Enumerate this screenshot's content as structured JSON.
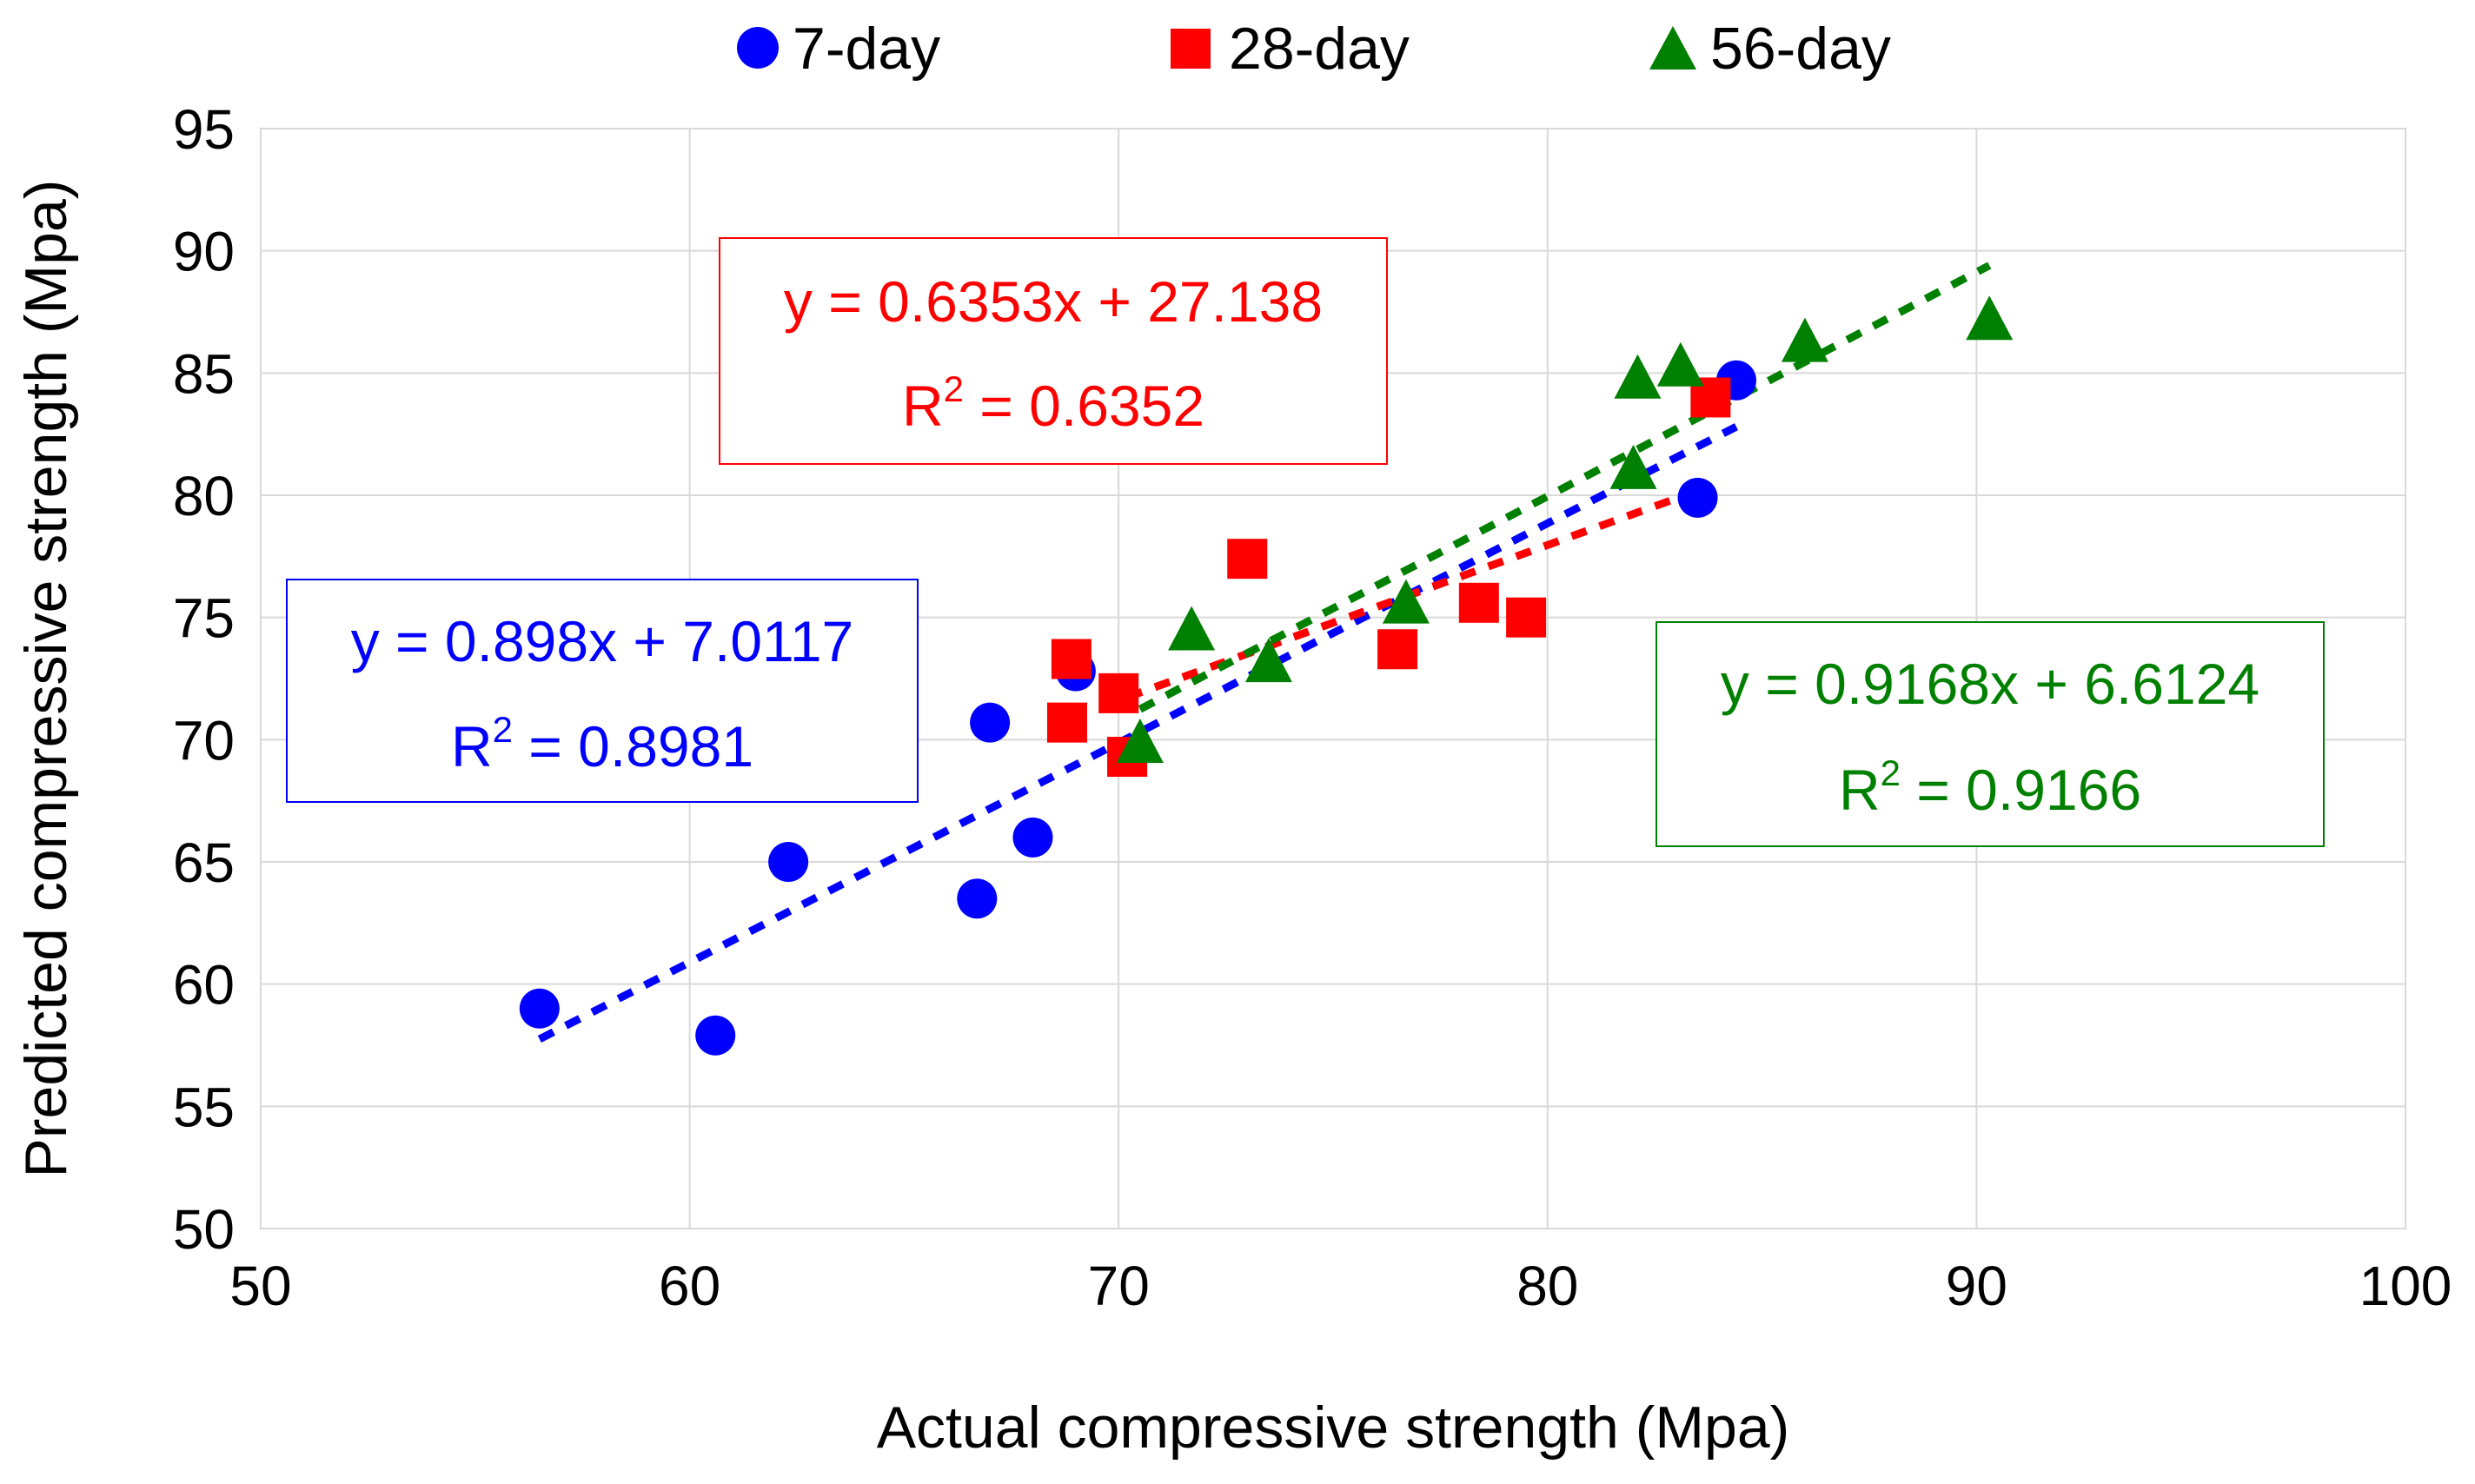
{
  "chart_data": {
    "type": "scatter",
    "xlabel": "Actual compressive strength (Mpa)",
    "ylabel": "Predicted compressive strength (Mpa)",
    "xlim": [
      50,
      100
    ],
    "ylim": [
      50,
      95
    ],
    "xticks": [
      50,
      60,
      70,
      80,
      90,
      100
    ],
    "yticks": [
      50,
      55,
      60,
      65,
      70,
      75,
      80,
      85,
      90,
      95
    ],
    "grid": true,
    "legend_position": "top",
    "series": [
      {
        "name": "7-day",
        "marker": "circle",
        "color": "#0000ff",
        "points": [
          [
            56.5,
            59.0
          ],
          [
            60.6,
            57.9
          ],
          [
            62.3,
            65.0
          ],
          [
            66.7,
            63.5
          ],
          [
            67.0,
            70.7
          ],
          [
            68.0,
            66.0
          ],
          [
            69.0,
            72.8
          ],
          [
            83.5,
            79.9
          ],
          [
            84.4,
            84.7
          ]
        ],
        "trendline": {
          "slope": 0.898,
          "intercept": 7.0117,
          "x_range": [
            56.5,
            84.4
          ]
        },
        "equation": "y = 0.898x + 7.0117",
        "r2_label": "R",
        "r2_sup": "2",
        "r2_value": " = 0.8981"
      },
      {
        "name": "28-day",
        "marker": "square",
        "color": "#ff0000",
        "points": [
          [
            68.9,
            73.3
          ],
          [
            68.8,
            70.7
          ],
          [
            70.0,
            71.9
          ],
          [
            70.2,
            69.3
          ],
          [
            73.0,
            77.4
          ],
          [
            76.5,
            73.7
          ],
          [
            78.4,
            75.6
          ],
          [
            79.5,
            75.0
          ],
          [
            83.8,
            84.0
          ]
        ],
        "trendline": {
          "slope": 0.6353,
          "intercept": 27.138,
          "x_range": [
            70.2,
            83.8
          ]
        },
        "equation": "y = 0.6353x + 27.138",
        "r2_label": "R",
        "r2_sup": "2",
        "r2_value": " = 0.6352"
      },
      {
        "name": "56-day",
        "marker": "triangle",
        "color": "#008000",
        "points": [
          [
            70.5,
            69.8
          ],
          [
            71.7,
            74.4
          ],
          [
            73.5,
            73.1
          ],
          [
            76.7,
            75.5
          ],
          [
            82.0,
            81.0
          ],
          [
            82.1,
            84.7
          ],
          [
            83.1,
            85.2
          ],
          [
            86.0,
            86.2
          ],
          [
            90.3,
            87.1
          ]
        ],
        "trendline": {
          "slope": 0.9168,
          "intercept": 6.6124,
          "x_range": [
            70.5,
            90.3
          ]
        },
        "equation": "y = 0.9168x + 6.6124",
        "r2_label": "R",
        "r2_sup": "2",
        "r2_value": " = 0.9166"
      }
    ]
  }
}
